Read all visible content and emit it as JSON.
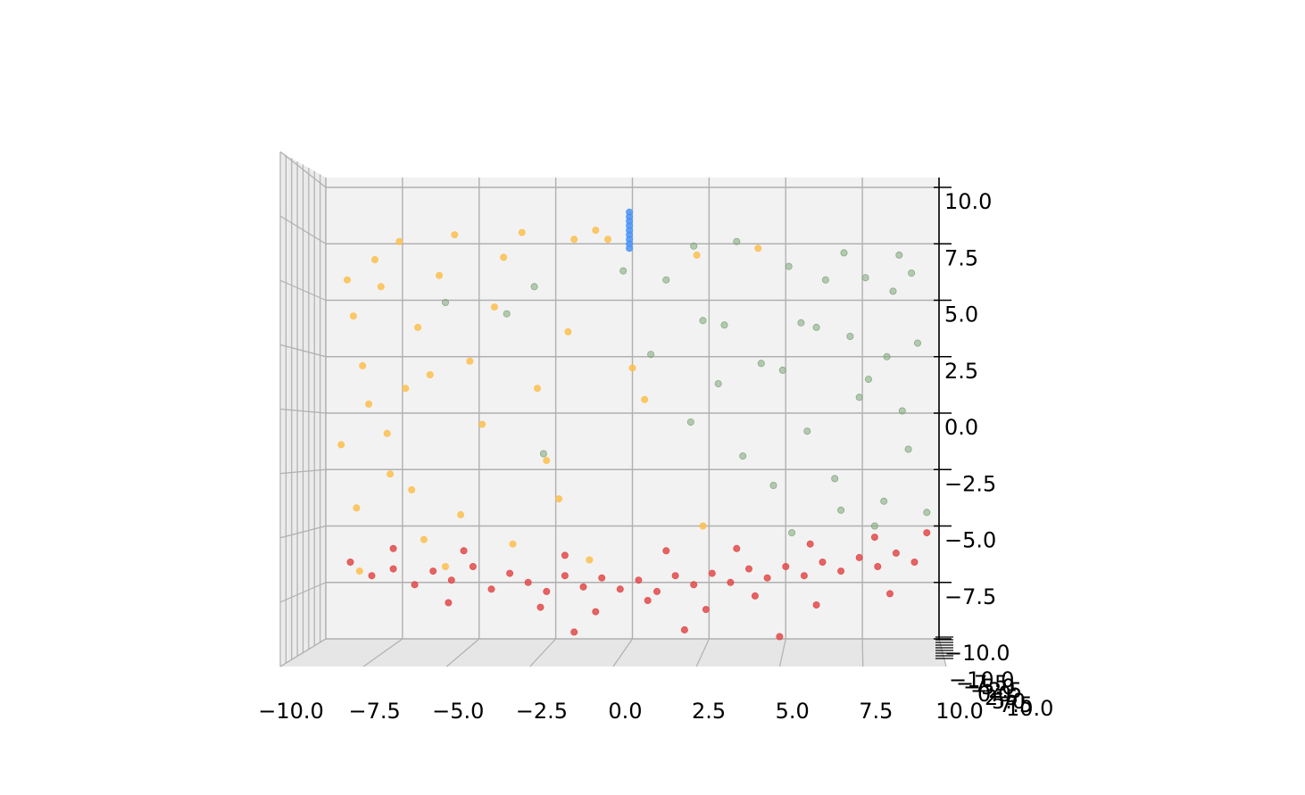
{
  "chart_data": {
    "type": "scatter",
    "projection": "3d",
    "title": "",
    "xlabel": "",
    "ylabel": "",
    "zlabel": "",
    "xlim": [
      -10,
      10
    ],
    "ylim": [
      -10,
      10
    ],
    "zlim": [
      -10,
      10
    ],
    "grid": true,
    "legend": "none",
    "x_ticks": [
      "−10.0",
      "−7.5",
      "−5.0",
      "−2.5",
      "0.0",
      "2.5",
      "5.0",
      "7.5",
      "10.0"
    ],
    "z_ticks": [
      "−10.0",
      "−7.5",
      "−5.0",
      "−2.5",
      "0.0",
      "2.5",
      "5.0",
      "7.5",
      "10.0"
    ],
    "y_ticks": [
      "−10.0",
      "−7.5",
      "−5.0",
      "−2.5",
      "0.0",
      "2.5",
      "5.0",
      "7.5",
      "10.0"
    ],
    "colors": {
      "pane": "#f2f2f2",
      "grid": "#b0b0b0",
      "series_1": "#fdc04f",
      "series_2": "#e24a4a",
      "series_3": "#7fa67a",
      "series_4": "#4a95f5"
    },
    "series": [
      {
        "color": "#fdc04f",
        "points": [
          [
            -8.4,
            0.0,
            6.8
          ],
          [
            -9.1,
            0.0,
            4.3
          ],
          [
            -8.8,
            0.0,
            2.1
          ],
          [
            -9.5,
            0.0,
            -1.4
          ],
          [
            -9.0,
            0.0,
            -4.2
          ],
          [
            -8.2,
            0.0,
            5.6
          ],
          [
            -7.6,
            0.0,
            7.6
          ],
          [
            -7.0,
            0.0,
            3.8
          ],
          [
            -6.6,
            0.0,
            1.7
          ],
          [
            -7.9,
            0.0,
            -2.7
          ],
          [
            -7.2,
            0.0,
            -3.4
          ],
          [
            -6.3,
            0.0,
            6.1
          ],
          [
            -5.8,
            0.0,
            7.9
          ],
          [
            -5.3,
            0.0,
            2.3
          ],
          [
            -4.9,
            0.0,
            -0.5
          ],
          [
            -5.6,
            0.0,
            -4.5
          ],
          [
            -6.8,
            0.0,
            -5.6
          ],
          [
            -4.2,
            0.0,
            6.9
          ],
          [
            -3.6,
            0.0,
            8.0
          ],
          [
            -3.1,
            0.0,
            1.1
          ],
          [
            -2.8,
            0.0,
            -2.1
          ],
          [
            -2.1,
            0.0,
            3.6
          ],
          [
            -1.9,
            0.0,
            7.7
          ],
          [
            -1.2,
            0.0,
            8.1
          ],
          [
            -0.8,
            0.0,
            7.7
          ],
          [
            -8.6,
            0.0,
            0.4
          ],
          [
            -9.3,
            0.0,
            5.9
          ],
          [
            -8.0,
            0.0,
            -0.9
          ],
          [
            -7.4,
            0.0,
            1.1
          ],
          [
            -4.5,
            0.0,
            4.7
          ],
          [
            -3.9,
            0.0,
            -5.8
          ],
          [
            -2.4,
            0.0,
            -3.8
          ],
          [
            -1.4,
            0.0,
            -6.5
          ],
          [
            2.1,
            0.0,
            7.0
          ],
          [
            2.3,
            0.0,
            -5.0
          ],
          [
            0.0,
            0.0,
            2.0
          ],
          [
            0.4,
            0.0,
            0.6
          ],
          [
            4.1,
            0.0,
            7.3
          ],
          [
            -8.9,
            0.0,
            -7.0
          ],
          [
            -6.1,
            0.0,
            -6.8
          ]
        ]
      },
      {
        "color": "#e24a4a",
        "points": [
          [
            -9.2,
            0.0,
            -6.6
          ],
          [
            -8.5,
            0.0,
            -7.2
          ],
          [
            -7.8,
            0.0,
            -6.9
          ],
          [
            -7.1,
            0.0,
            -7.6
          ],
          [
            -6.5,
            0.0,
            -7.0
          ],
          [
            -5.9,
            0.0,
            -7.4
          ],
          [
            -5.2,
            0.0,
            -6.8
          ],
          [
            -4.6,
            0.0,
            -7.8
          ],
          [
            -4.0,
            0.0,
            -7.1
          ],
          [
            -3.4,
            0.0,
            -7.5
          ],
          [
            -2.8,
            0.0,
            -7.9
          ],
          [
            -2.2,
            0.0,
            -7.2
          ],
          [
            -1.6,
            0.0,
            -7.7
          ],
          [
            -1.0,
            0.0,
            -7.3
          ],
          [
            -0.4,
            0.0,
            -7.8
          ],
          [
            0.2,
            0.0,
            -7.4
          ],
          [
            0.8,
            0.0,
            -7.9
          ],
          [
            1.4,
            0.0,
            -7.2
          ],
          [
            2.0,
            0.0,
            -7.6
          ],
          [
            2.6,
            0.0,
            -7.1
          ],
          [
            3.2,
            0.0,
            -7.5
          ],
          [
            3.8,
            0.0,
            -6.9
          ],
          [
            4.4,
            0.0,
            -7.3
          ],
          [
            5.0,
            0.0,
            -6.8
          ],
          [
            5.6,
            0.0,
            -7.2
          ],
          [
            6.2,
            0.0,
            -6.6
          ],
          [
            6.8,
            0.0,
            -7.0
          ],
          [
            7.4,
            0.0,
            -6.4
          ],
          [
            8.0,
            0.0,
            -6.8
          ],
          [
            8.6,
            0.0,
            -6.2
          ],
          [
            9.2,
            0.0,
            -6.6
          ],
          [
            -3.0,
            0.0,
            -8.6
          ],
          [
            -1.2,
            0.0,
            -8.8
          ],
          [
            0.5,
            0.0,
            -8.3
          ],
          [
            2.4,
            0.0,
            -8.7
          ],
          [
            4.0,
            0.0,
            -8.1
          ],
          [
            6.0,
            0.0,
            -8.5
          ],
          [
            -6.0,
            0.0,
            -8.4
          ],
          [
            -2.2,
            0.0,
            -6.3
          ],
          [
            1.1,
            0.0,
            -6.1
          ],
          [
            3.4,
            0.0,
            -6.0
          ],
          [
            5.8,
            0.0,
            -5.8
          ],
          [
            7.9,
            0.0,
            -5.5
          ],
          [
            9.6,
            0.0,
            -5.3
          ],
          [
            -5.5,
            0.0,
            -6.1
          ],
          [
            -7.8,
            0.0,
            -6.0
          ],
          [
            1.7,
            0.0,
            -9.6
          ],
          [
            4.8,
            0.0,
            -9.9
          ],
          [
            -1.9,
            0.0,
            -9.7
          ],
          [
            8.4,
            0.0,
            -8.0
          ]
        ]
      },
      {
        "color": "#7fa67a",
        "points": [
          [
            1.1,
            0.0,
            5.9
          ],
          [
            2.3,
            0.0,
            4.1
          ],
          [
            3.4,
            0.0,
            7.6
          ],
          [
            4.2,
            0.0,
            2.2
          ],
          [
            5.1,
            0.0,
            6.5
          ],
          [
            6.0,
            0.0,
            3.8
          ],
          [
            6.9,
            0.0,
            7.1
          ],
          [
            7.7,
            0.0,
            1.5
          ],
          [
            8.5,
            0.0,
            5.4
          ],
          [
            9.3,
            0.0,
            3.1
          ],
          [
            5.7,
            0.0,
            -0.8
          ],
          [
            6.6,
            0.0,
            -2.9
          ],
          [
            7.4,
            0.0,
            0.7
          ],
          [
            8.2,
            0.0,
            -3.9
          ],
          [
            9.0,
            0.0,
            -1.6
          ],
          [
            4.6,
            0.0,
            -3.2
          ],
          [
            3.6,
            0.0,
            -1.9
          ],
          [
            2.8,
            0.0,
            1.3
          ],
          [
            1.9,
            0.0,
            -0.4
          ],
          [
            0.6,
            0.0,
            2.6
          ],
          [
            -0.3,
            0.0,
            6.3
          ],
          [
            -2.9,
            0.0,
            -1.8
          ],
          [
            -4.1,
            0.0,
            4.4
          ],
          [
            -6.1,
            0.0,
            4.9
          ],
          [
            -3.2,
            0.0,
            5.6
          ],
          [
            6.3,
            0.0,
            5.9
          ],
          [
            7.1,
            0.0,
            3.4
          ],
          [
            8.8,
            0.0,
            0.1
          ],
          [
            9.6,
            0.0,
            -4.4
          ],
          [
            5.2,
            0.0,
            -5.3
          ],
          [
            7.9,
            0.0,
            -5.0
          ],
          [
            8.7,
            0.0,
            7.0
          ],
          [
            4.9,
            0.0,
            1.9
          ],
          [
            3.0,
            0.0,
            3.9
          ],
          [
            6.8,
            0.0,
            -4.3
          ],
          [
            9.1,
            0.0,
            6.2
          ],
          [
            2.0,
            0.0,
            7.4
          ],
          [
            5.5,
            0.0,
            4.0
          ],
          [
            7.6,
            0.0,
            6.0
          ],
          [
            8.3,
            0.0,
            2.5
          ]
        ]
      },
      {
        "color": "#4a95f5",
        "points": [
          [
            -0.1,
            0.0,
            8.9
          ],
          [
            -0.1,
            0.0,
            8.7
          ],
          [
            -0.1,
            0.0,
            8.5
          ],
          [
            -0.1,
            0.0,
            8.3
          ],
          [
            -0.1,
            0.0,
            8.1
          ],
          [
            -0.1,
            0.0,
            7.9
          ],
          [
            -0.1,
            0.0,
            7.7
          ],
          [
            -0.1,
            0.0,
            7.5
          ],
          [
            -0.1,
            0.0,
            7.3
          ]
        ]
      }
    ]
  }
}
